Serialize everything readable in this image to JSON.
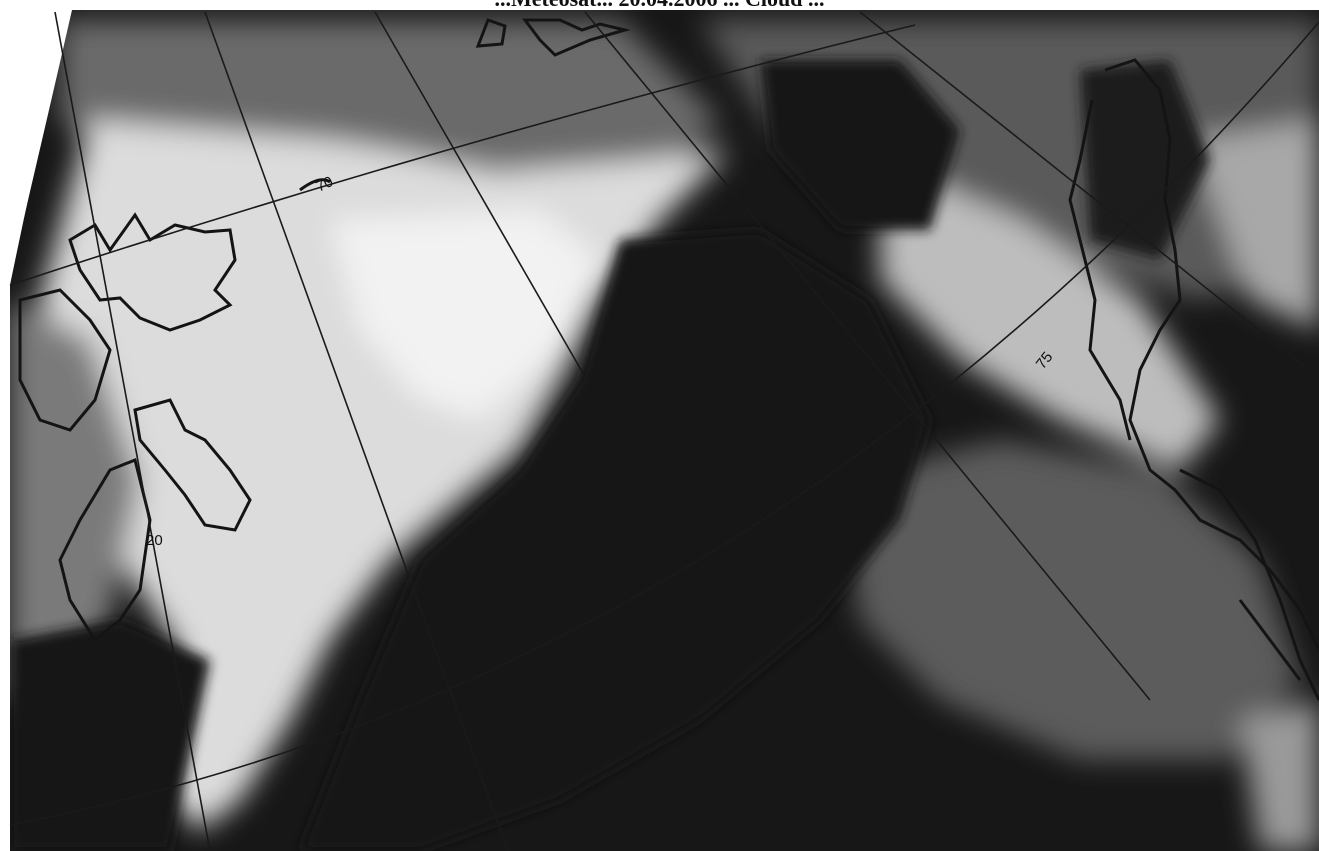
{
  "caption": "...Meteosat... 20.04.2006 ... Cloud ...",
  "grid_labels": {
    "label_20": "20",
    "label_75": "75",
    "label_70": "70"
  },
  "colors": {
    "background": "#ffffff",
    "grid_line": "#1a1a1a",
    "coastline": "#141414"
  }
}
